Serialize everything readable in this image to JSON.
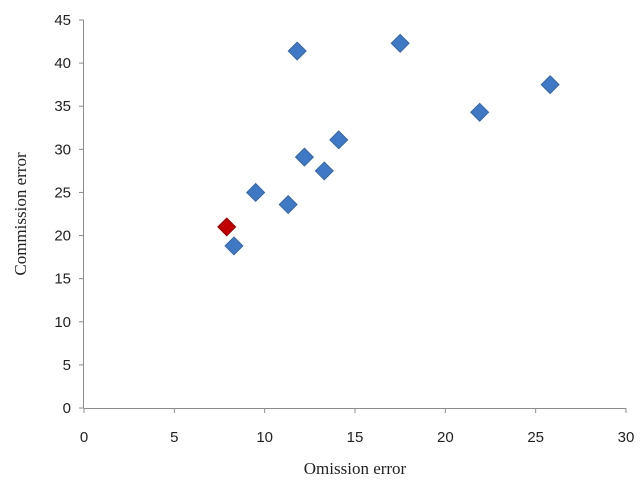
{
  "chart_data": {
    "type": "scatter",
    "title": "",
    "xlabel": "Omission error",
    "ylabel": "Commission error",
    "xlim": [
      0,
      30
    ],
    "ylim": [
      0,
      45
    ],
    "xticks": [
      0,
      5,
      10,
      15,
      20,
      25,
      30
    ],
    "yticks": [
      0,
      5,
      10,
      15,
      20,
      25,
      30,
      35,
      40,
      45
    ],
    "grid": false,
    "legend": "none",
    "marker": "diamond",
    "series": [
      {
        "color": "#3f78c4",
        "points": [
          {
            "x": 8.3,
            "y": 18.8
          },
          {
            "x": 9.5,
            "y": 25.0
          },
          {
            "x": 11.3,
            "y": 23.6
          },
          {
            "x": 11.8,
            "y": 41.4
          },
          {
            "x": 12.2,
            "y": 29.1
          },
          {
            "x": 13.3,
            "y": 27.5
          },
          {
            "x": 14.1,
            "y": 31.1
          },
          {
            "x": 17.5,
            "y": 42.3
          },
          {
            "x": 21.9,
            "y": 34.3
          },
          {
            "x": 25.8,
            "y": 37.5
          }
        ]
      },
      {
        "color": "#c00000",
        "points": [
          {
            "x": 7.9,
            "y": 21.0
          }
        ]
      }
    ]
  }
}
